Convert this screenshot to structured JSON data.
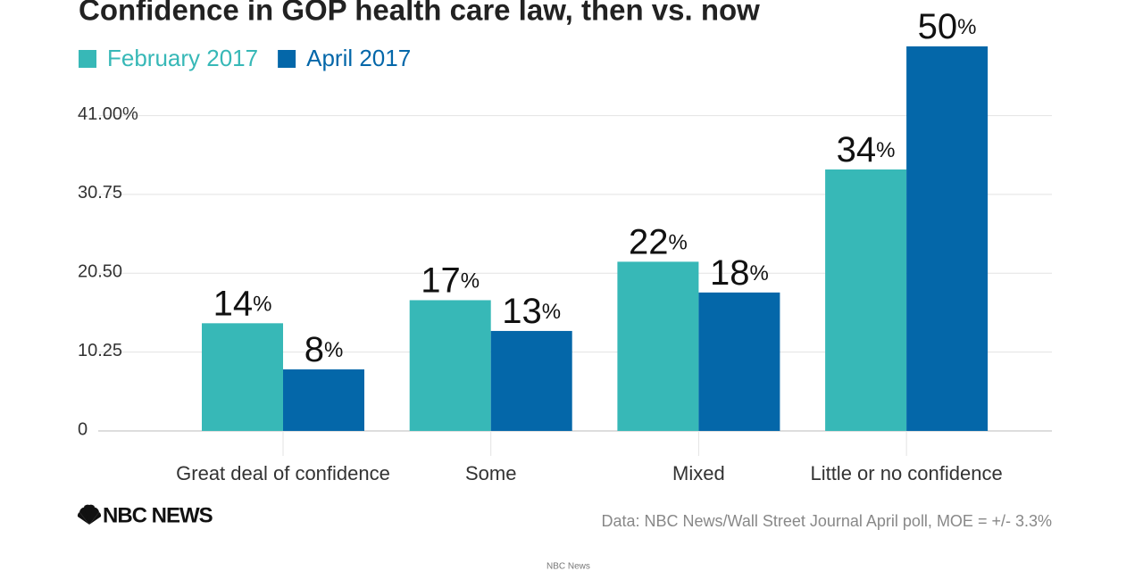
{
  "chart_data": {
    "type": "bar",
    "title": "Confidence in GOP health care law, then vs. now",
    "categories": [
      "Great deal of confidence",
      "Some",
      "Mixed",
      "Little or no confidence"
    ],
    "series": [
      {
        "name": "February 2017",
        "color": "#37b8b7",
        "values": [
          14,
          17,
          22,
          34
        ],
        "value_labels": [
          "14%",
          "17%",
          "22%",
          "34%"
        ]
      },
      {
        "name": "April 2017",
        "color": "#0467a9",
        "values": [
          8,
          13,
          18,
          50
        ],
        "value_labels": [
          "8%",
          "13%",
          "18%",
          "50%"
        ]
      }
    ],
    "ylim": [
      0,
      50
    ],
    "yticks": [
      0,
      10.25,
      {
        "value": 20.5,
        "label": "20.50"
      },
      30.75,
      {
        "value": 41,
        "label": "41.00%"
      }
    ],
    "grid": true,
    "source": "Data: NBC News/Wall Street Journal April poll, MOE = +/- 3.3%",
    "logo": "NBC NEWS",
    "credit": "NBC News"
  }
}
